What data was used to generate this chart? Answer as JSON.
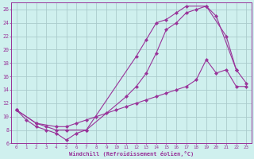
{
  "xlabel": "Windchill (Refroidissement éolien,°C)",
  "bg_color": "#cff0ee",
  "line_color": "#993399",
  "grid_color": "#aacccc",
  "xlim": [
    -0.5,
    23.5
  ],
  "ylim": [
    6,
    27
  ],
  "xticks": [
    0,
    1,
    2,
    3,
    4,
    5,
    6,
    7,
    8,
    9,
    10,
    11,
    12,
    13,
    14,
    15,
    16,
    17,
    18,
    19,
    20,
    21,
    22,
    23
  ],
  "yticks": [
    6,
    8,
    10,
    12,
    14,
    16,
    18,
    20,
    22,
    24,
    26
  ],
  "line1_x": [
    0,
    1,
    2,
    3,
    4,
    5,
    6,
    7,
    12,
    13,
    14,
    15,
    16,
    17,
    19,
    21,
    22
  ],
  "line1_y": [
    11,
    9.5,
    8.5,
    8,
    7.5,
    6.5,
    7.5,
    8,
    19,
    21.5,
    24,
    24.5,
    25.5,
    26.5,
    26.5,
    22,
    17
  ],
  "line2_x": [
    0,
    2,
    3,
    4,
    5,
    7,
    11,
    12,
    13,
    14,
    15,
    16,
    17,
    18,
    19,
    20,
    22,
    23
  ],
  "line2_y": [
    11,
    9,
    8.5,
    8,
    8,
    8,
    13,
    14.5,
    16.5,
    19.5,
    23,
    24,
    25.5,
    26,
    26.5,
    25,
    17,
    15
  ],
  "line3_x": [
    0,
    2,
    4,
    5,
    6,
    7,
    8,
    9,
    10,
    11,
    12,
    13,
    14,
    15,
    16,
    17,
    18,
    19,
    20,
    21,
    22,
    23
  ],
  "line3_y": [
    11,
    9,
    8.5,
    8.5,
    9,
    9.5,
    10,
    10.5,
    11,
    11.5,
    12,
    12.5,
    13,
    13.5,
    14,
    14.5,
    15.5,
    18.5,
    16.5,
    17,
    14.5,
    14.5
  ]
}
